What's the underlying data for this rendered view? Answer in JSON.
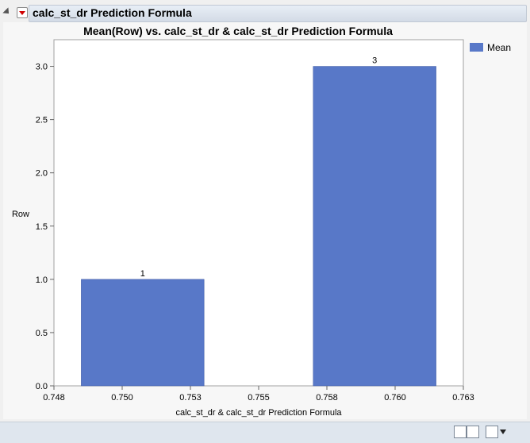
{
  "outline": {
    "title": "calc_st_dr Prediction Formula"
  },
  "chart_data": {
    "type": "bar",
    "title": "Mean(Row) vs. calc_st_dr & calc_st_dr Prediction Formula",
    "xlabel": "calc_st_dr & calc_st_dr Prediction Formula",
    "ylabel": "Row",
    "xlim": [
      0.748,
      0.763
    ],
    "ylim": [
      0,
      3.25
    ],
    "xticks": [
      "0.748",
      "0.750",
      "0.753",
      "0.755",
      "0.758",
      "0.760",
      "0.763"
    ],
    "yticks": [
      "0.0",
      "0.5",
      "1.0",
      "1.5",
      "2.0",
      "2.5",
      "3.0"
    ],
    "bars": [
      {
        "x0": 0.749,
        "x1": 0.7535,
        "value": 1,
        "label": "1"
      },
      {
        "x0": 0.7575,
        "x1": 0.762,
        "value": 3,
        "label": "3"
      }
    ],
    "series": [
      {
        "name": "Mean",
        "color": "#5878c8"
      }
    ],
    "legend": "top-right",
    "grid": false
  },
  "icons": [
    "home-icon",
    "chart-icon",
    "window-icon",
    "dropdown-icon"
  ]
}
